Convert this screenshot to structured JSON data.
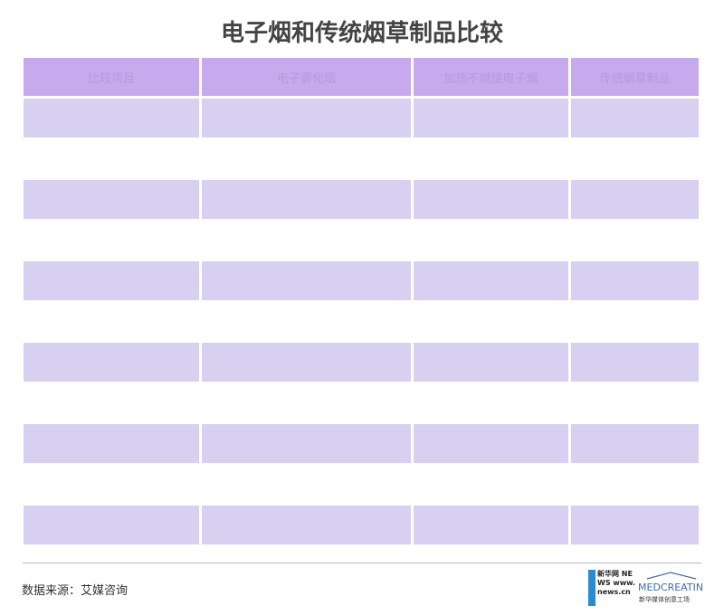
{
  "title": "电子烟和传统烟草制品比较",
  "table": {
    "headers": [
      "比较项目",
      "电子雾化烟",
      "加热不燃烧电子烟",
      "传统烟草制品"
    ],
    "rows": [
      [
        "",
        "",
        "",
        ""
      ],
      [
        "",
        "",
        "",
        ""
      ],
      [
        "",
        "",
        "",
        ""
      ],
      [
        "",
        "",
        "",
        ""
      ],
      [
        "",
        "",
        "",
        ""
      ],
      [
        "",
        "",
        "",
        ""
      ],
      [
        "",
        "",
        "",
        ""
      ],
      [
        "",
        "",
        "",
        ""
      ],
      [
        "",
        "",
        "",
        ""
      ],
      [
        "",
        "",
        "",
        ""
      ],
      [
        "",
        "",
        "",
        ""
      ]
    ]
  },
  "colors": {
    "header": "#c7a9ee",
    "row_shade": "#d8d0f0"
  },
  "footer": {
    "source": "数据来源：艾媒咨询",
    "logo1_text": "新华网 NEWS www.news.cn",
    "logo2_text": "MEDCREATING 新华媒体创意工场"
  }
}
